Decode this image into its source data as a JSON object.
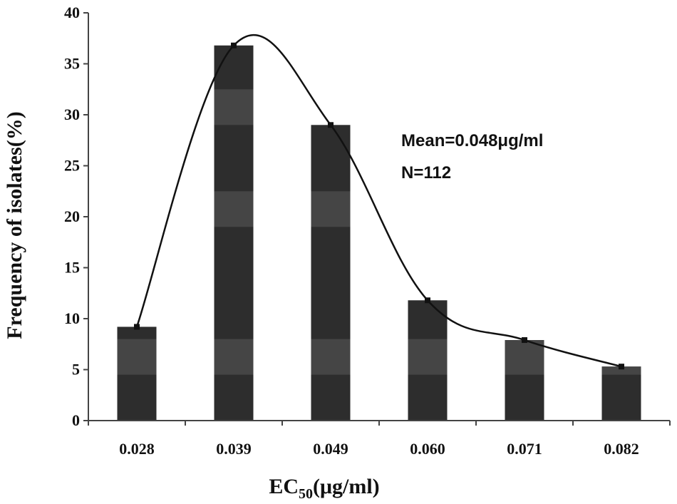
{
  "chart_data": {
    "type": "bar",
    "categories": [
      "0.028",
      "0.039",
      "0.049",
      "0.060",
      "0.071",
      "0.082"
    ],
    "values": [
      9.2,
      36.8,
      29.0,
      11.8,
      7.9,
      5.3
    ],
    "ylabel": "Frequency of isolates(%)",
    "xlabel": {
      "prefix": "EC",
      "subscript": "50",
      "suffix": "(μg/ml)"
    },
    "ylim": [
      0,
      40
    ],
    "yticks": [
      "0",
      "5",
      "10",
      "15",
      "20",
      "25",
      "30",
      "35",
      "40"
    ],
    "annotations": [
      "Mean=0.048μg/ml",
      "N=112"
    ],
    "overlay": "smooth-line-through-bar-tops",
    "grid": false,
    "legend": "none",
    "colors": {
      "bar": "#2d2d2d",
      "bar_band": "#454545",
      "line": "#111111",
      "axis": "#444444"
    }
  }
}
